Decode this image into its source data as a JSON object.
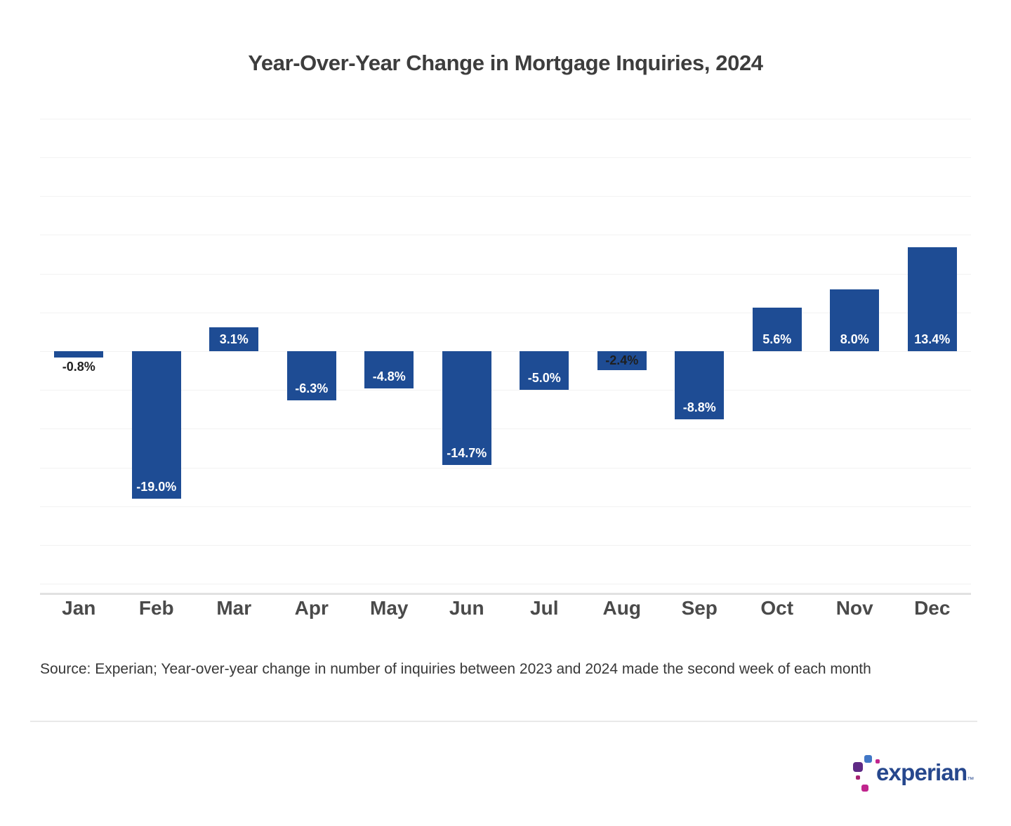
{
  "page": {
    "source_note": "Source: Experian; Year-over-year change in number of inquiries between 2023 and 2024 made the second week of each month"
  },
  "chart_data": {
    "type": "bar",
    "title": "Year-Over-Year Change in Mortgage Inquiries, 2024",
    "xlabel": "",
    "ylabel": "",
    "legend": "none",
    "categories": [
      "Jan",
      "Feb",
      "Mar",
      "Apr",
      "May",
      "Jun",
      "Jul",
      "Aug",
      "Sep",
      "Oct",
      "Nov",
      "Dec"
    ],
    "values": [
      -0.8,
      -19.0,
      3.1,
      -6.3,
      -4.8,
      -14.7,
      -5.0,
      -2.4,
      -8.8,
      5.6,
      8.0,
      13.4
    ],
    "data_labels": [
      "-0.8%",
      "-19.0%",
      "3.1%",
      "-6.3%",
      "-4.8%",
      "-14.7%",
      "-5.0%",
      "-2.4%",
      "-8.8%",
      "5.6%",
      "8.0%",
      "13.4%"
    ],
    "label_styles": [
      {
        "placement": "below",
        "tone": "dark"
      },
      {
        "placement": "inside-bottom",
        "tone": "light"
      },
      {
        "placement": "inside-center",
        "tone": "light"
      },
      {
        "placement": "inside-bottom",
        "tone": "light"
      },
      {
        "placement": "inside-bottom",
        "tone": "light"
      },
      {
        "placement": "inside-bottom",
        "tone": "light"
      },
      {
        "placement": "inside-bottom",
        "tone": "light"
      },
      {
        "placement": "inside-center",
        "tone": "dark"
      },
      {
        "placement": "inside-bottom",
        "tone": "light"
      },
      {
        "placement": "inside-bottom",
        "tone": "light"
      },
      {
        "placement": "inside-bottom",
        "tone": "light"
      },
      {
        "placement": "inside-bottom",
        "tone": "light"
      }
    ],
    "bar_color": "#1e4c94",
    "label_color_light": "#ffffff",
    "label_color_dark": "#1f1f1f",
    "axis": {
      "ymin": -31.3,
      "ymax": 30.1,
      "grid_step": 5,
      "grid": true,
      "zero_baseline": true,
      "y_tick_labels_visible": false
    }
  },
  "logo": {
    "text": "experian",
    "trademark": "™",
    "text_color": "#26478d",
    "mark_colors": {
      "blue": "#4177c6",
      "purple": "#5f2a85",
      "magenta": "#c0258d",
      "dark_magenta": "#a82373"
    }
  }
}
